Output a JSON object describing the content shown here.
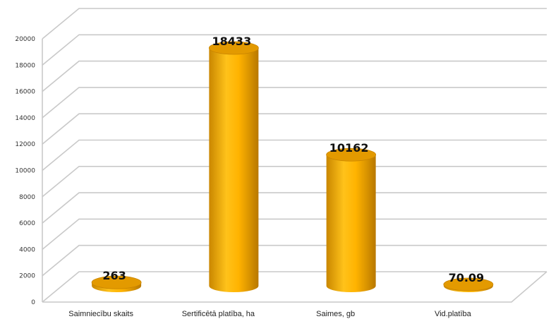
{
  "chart_data": {
    "type": "bar",
    "style": "3d-cylinder",
    "categories": [
      "Saimniecību skaits",
      "Sertificētā platība, ha",
      "Saimes, gb",
      "Vid.platība"
    ],
    "values": [
      263,
      18433,
      10162,
      70.09
    ],
    "data_labels": [
      "263",
      "18433",
      "10162",
      "70.09"
    ],
    "y_ticks": [
      "0",
      "2000",
      "4000",
      "6000",
      "8000",
      "10000",
      "12000",
      "14000",
      "16000",
      "18000",
      "20000"
    ],
    "ylim": [
      0,
      20000
    ],
    "grid": true,
    "legend": "none",
    "bar_color": "#F5A800",
    "bar_top_color": "#E39A00"
  }
}
